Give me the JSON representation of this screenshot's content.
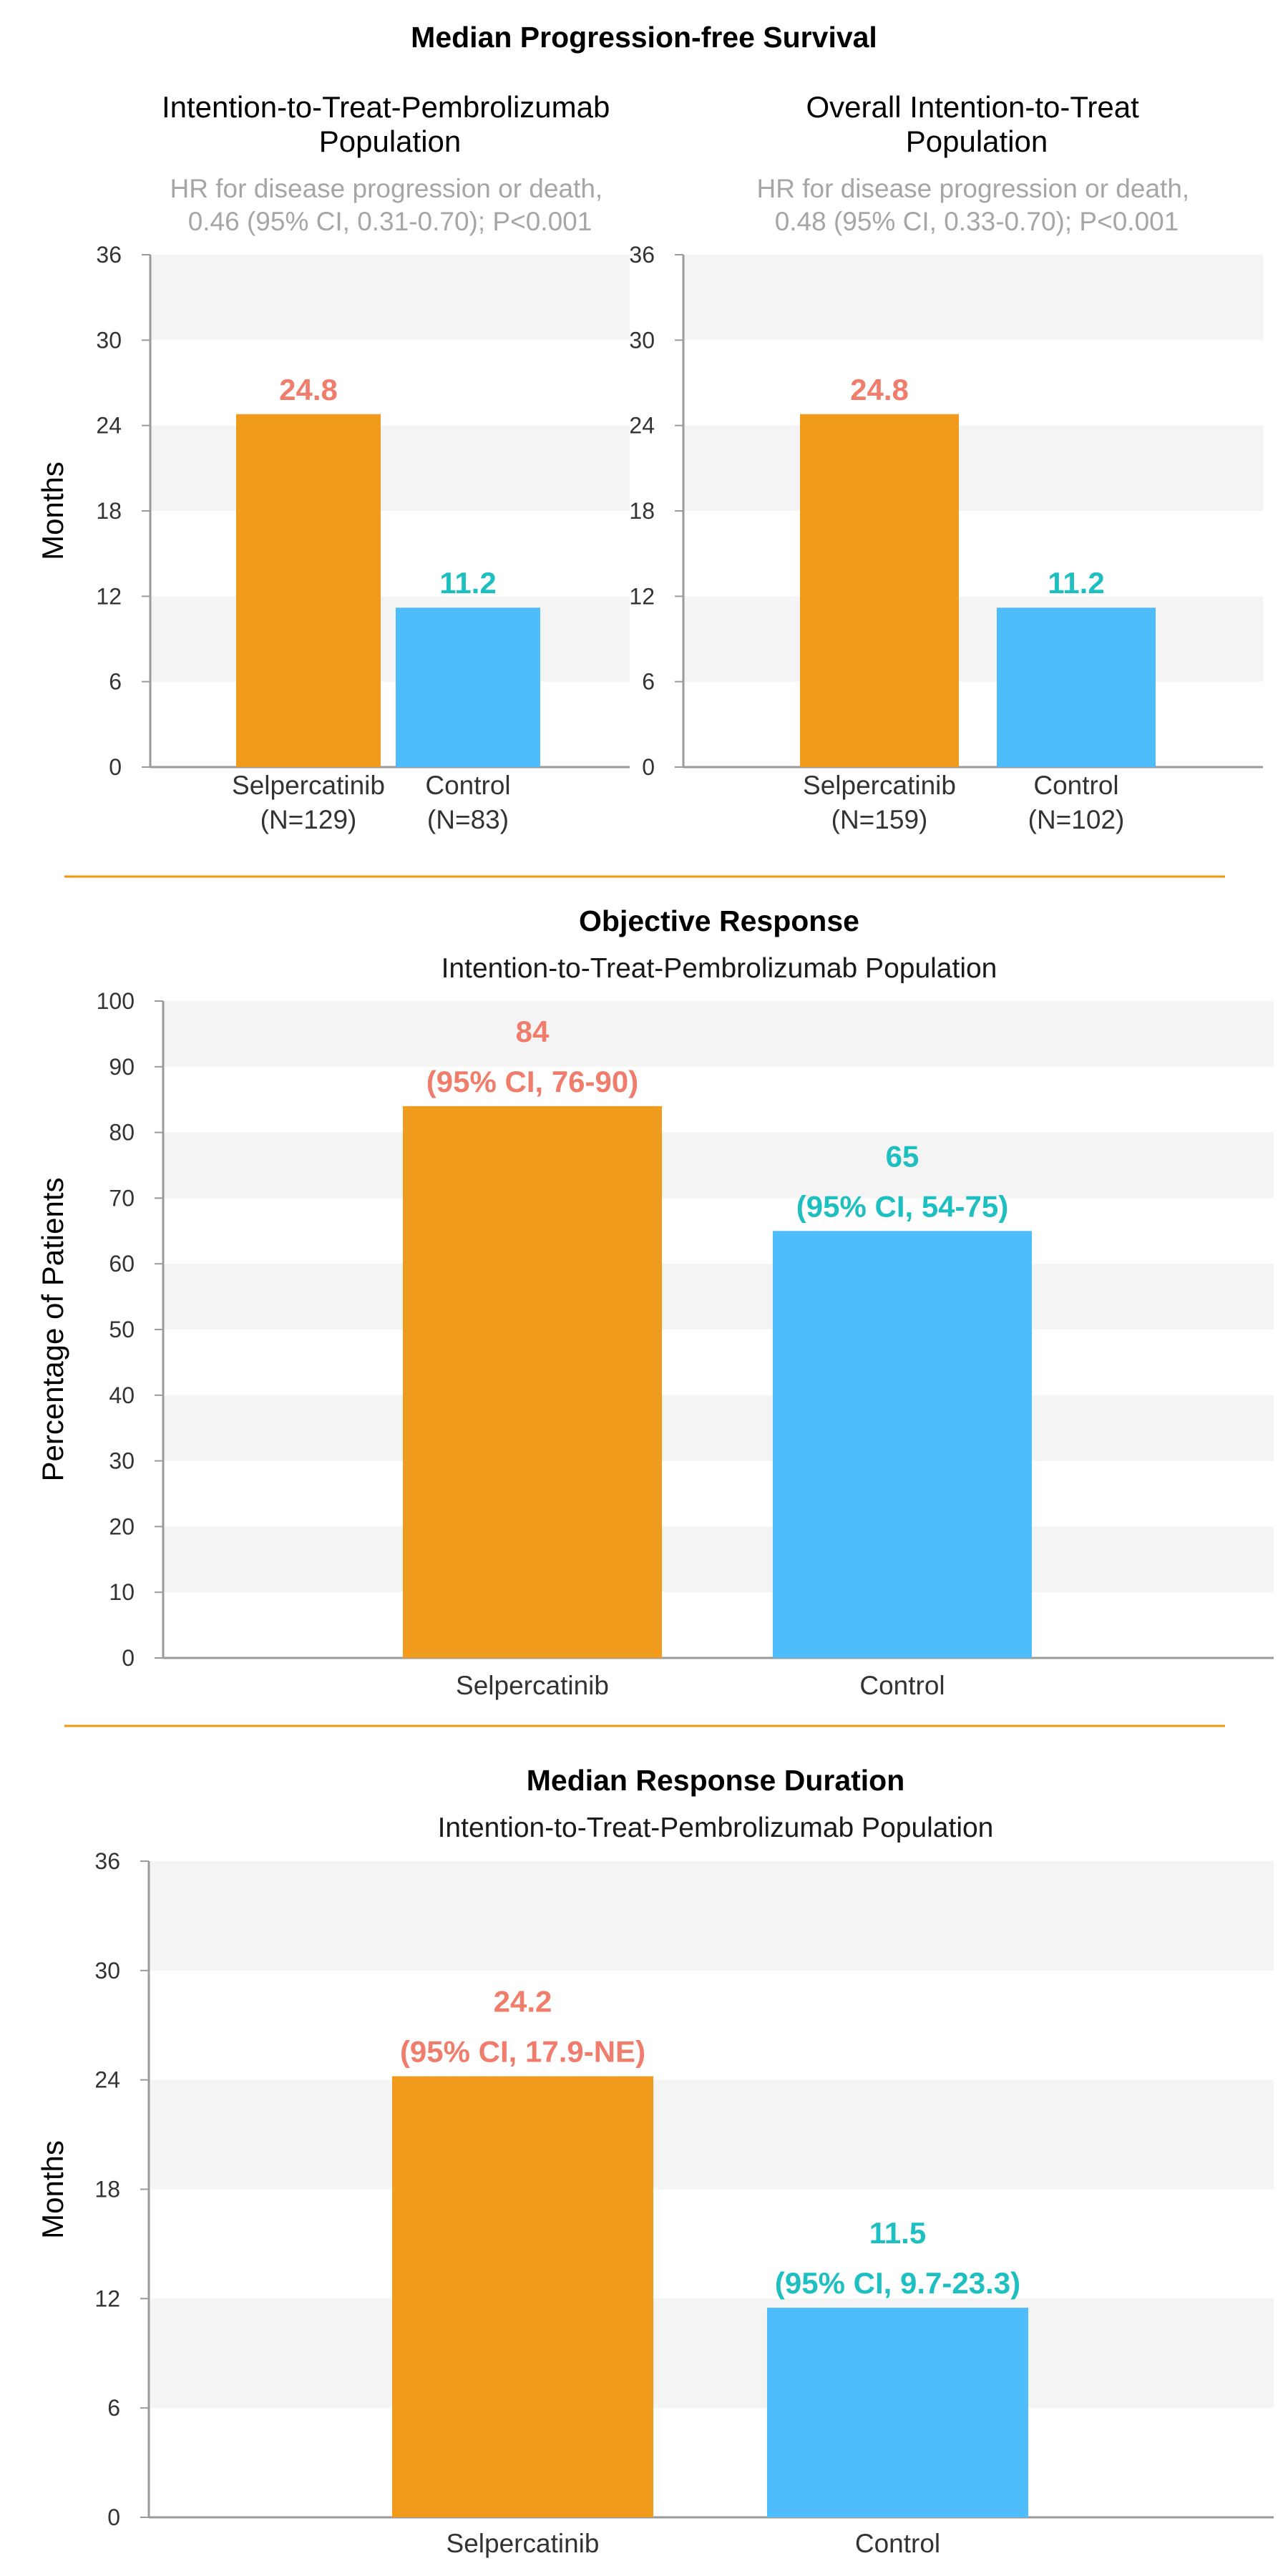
{
  "colors": {
    "selpercatinib_bar": "#F09B1C",
    "control_bar": "#4FBDFB",
    "selpercatinib_label": "#F07C6C",
    "control_label": "#1EBFC0",
    "divider": "#F0960F",
    "band": "#F4F4F4"
  },
  "chart_data": [
    {
      "type": "bar",
      "section_title": "Median Progression-free Survival",
      "title": "Intention-to-Treat-Pembrolizumab Population",
      "subtitle": "HR for disease progression or death, 0.46 (95% CI, 0.31-0.70); P<0.001",
      "ylabel": "Months",
      "ylim": [
        0,
        36
      ],
      "yticks": [
        0,
        6,
        12,
        18,
        24,
        30,
        36
      ],
      "categories": [
        "Selpercatinib (N=129)",
        "Control (N=83)"
      ],
      "category_lines": [
        [
          "Selpercatinib",
          "(N=129)"
        ],
        [
          "Control",
          "(N=83)"
        ]
      ],
      "values": [
        24.8,
        11.2
      ],
      "value_labels": [
        [
          "24.8"
        ],
        [
          "11.2"
        ]
      ]
    },
    {
      "type": "bar",
      "title": "Overall Intention-to-Treat Population",
      "subtitle": "HR for disease progression or death, 0.48 (95% CI, 0.33-0.70); P<0.001",
      "ylabel": "",
      "ylim": [
        0,
        36
      ],
      "yticks": [
        0,
        6,
        12,
        18,
        24,
        30,
        36
      ],
      "categories": [
        "Selpercatinib (N=159)",
        "Control (N=102)"
      ],
      "category_lines": [
        [
          "Selpercatinib",
          "(N=159)"
        ],
        [
          "Control",
          "(N=102)"
        ]
      ],
      "values": [
        24.8,
        11.2
      ],
      "value_labels": [
        [
          "24.8"
        ],
        [
          "11.2"
        ]
      ]
    },
    {
      "type": "bar",
      "section_title": "Objective Response",
      "title": "Intention-to-Treat-Pembrolizumab Population",
      "ylabel": "Percentage of Patients",
      "ylim": [
        0,
        100
      ],
      "yticks": [
        0,
        10,
        20,
        30,
        40,
        50,
        60,
        70,
        80,
        90,
        100
      ],
      "categories": [
        "Selpercatinib",
        "Control"
      ],
      "category_lines": [
        [
          "Selpercatinib"
        ],
        [
          "Control"
        ]
      ],
      "values": [
        84,
        65
      ],
      "value_labels": [
        [
          "84",
          "(95% CI, 76-90)"
        ],
        [
          "65",
          "(95% CI, 54-75)"
        ]
      ]
    },
    {
      "type": "bar",
      "section_title": "Median Response Duration",
      "title": "Intention-to-Treat-Pembrolizumab Population",
      "ylabel": "Months",
      "ylim": [
        0,
        36
      ],
      "yticks": [
        0,
        6,
        12,
        18,
        24,
        30,
        36
      ],
      "categories": [
        "Selpercatinib",
        "Control"
      ],
      "category_lines": [
        [
          "Selpercatinib"
        ],
        [
          "Control"
        ]
      ],
      "values": [
        24.2,
        11.5
      ],
      "value_labels": [
        [
          "24.2",
          "(95% CI, 17.9-NE)"
        ],
        [
          "11.5",
          "(95% CI, 9.7-23.3)"
        ]
      ]
    }
  ]
}
